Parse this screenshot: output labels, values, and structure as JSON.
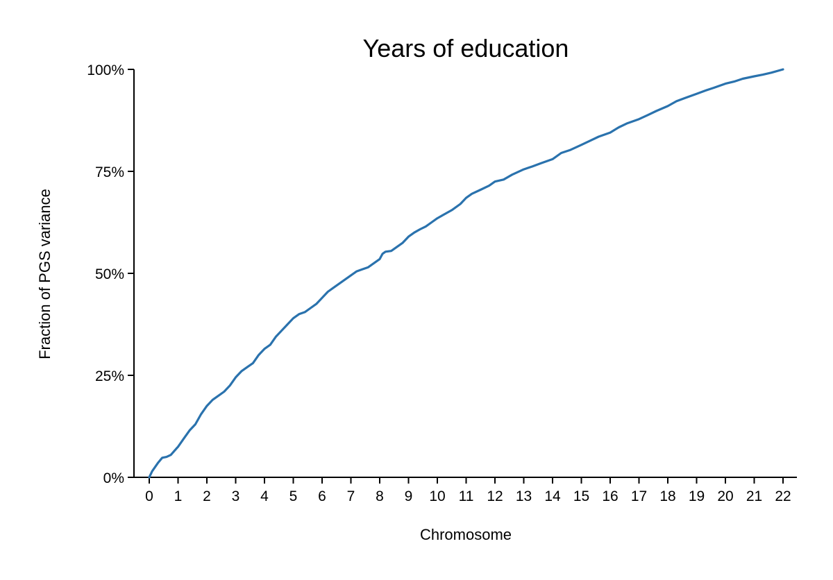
{
  "chart_data": {
    "type": "line",
    "title": "Years of education",
    "xlabel": "Chromosome",
    "ylabel": "Fraction of PGS variance",
    "xlim": [
      0,
      22
    ],
    "ylim": [
      0,
      100
    ],
    "x_ticks": [
      0,
      1,
      2,
      3,
      4,
      5,
      6,
      7,
      8,
      9,
      10,
      11,
      12,
      13,
      14,
      15,
      16,
      17,
      18,
      19,
      20,
      21,
      22
    ],
    "y_ticks": [
      0,
      25,
      50,
      75,
      100
    ],
    "y_tick_labels": [
      "0%",
      "25%",
      "50%",
      "75%",
      "100%"
    ],
    "grid": false,
    "line_color": "#2a72ad",
    "series": [
      {
        "x": [
          0,
          0.1,
          0.2,
          0.3,
          0.45,
          0.6,
          0.75,
          1.0,
          1.2,
          1.4,
          1.6,
          1.8,
          2.0,
          2.2,
          2.4,
          2.6,
          2.8,
          3.0,
          3.2,
          3.4,
          3.6,
          3.8,
          4.0,
          4.2,
          4.4,
          4.6,
          4.8,
          5.0,
          5.2,
          5.4,
          5.6,
          5.8,
          6.0,
          6.2,
          6.4,
          6.6,
          6.8,
          7.0,
          7.2,
          7.4,
          7.6,
          7.8,
          8.0,
          8.1,
          8.2,
          8.4,
          8.6,
          8.8,
          9.0,
          9.2,
          9.4,
          9.6,
          9.8,
          10.0,
          10.2,
          10.5,
          10.8,
          11.0,
          11.2,
          11.5,
          11.8,
          12.0,
          12.3,
          12.6,
          13.0,
          13.3,
          13.6,
          14.0,
          14.3,
          14.6,
          15.0,
          15.3,
          15.6,
          16.0,
          16.3,
          16.6,
          17.0,
          17.3,
          17.6,
          18.0,
          18.3,
          18.6,
          19.0,
          19.3,
          19.6,
          20.0,
          20.3,
          20.6,
          21.0,
          21.3,
          21.6,
          22.0
        ],
        "y": [
          0,
          1.5,
          2.5,
          3.5,
          4.8,
          5.0,
          5.5,
          7.5,
          9.5,
          11.5,
          13.0,
          15.5,
          17.5,
          19.0,
          20.0,
          21.0,
          22.5,
          24.5,
          26.0,
          27.0,
          28.0,
          30.0,
          31.5,
          32.5,
          34.5,
          36.0,
          37.5,
          39.0,
          40.0,
          40.5,
          41.5,
          42.5,
          44.0,
          45.5,
          46.5,
          47.5,
          48.5,
          49.5,
          50.5,
          51.0,
          51.5,
          52.5,
          53.5,
          54.8,
          55.3,
          55.5,
          56.5,
          57.5,
          59.0,
          60.0,
          60.8,
          61.5,
          62.5,
          63.5,
          64.3,
          65.5,
          67.0,
          68.5,
          69.5,
          70.5,
          71.5,
          72.5,
          73.0,
          74.2,
          75.5,
          76.2,
          77.0,
          78.0,
          79.5,
          80.2,
          81.5,
          82.5,
          83.5,
          84.5,
          85.8,
          86.8,
          87.8,
          88.8,
          89.8,
          91.0,
          92.2,
          93.0,
          94.0,
          94.8,
          95.5,
          96.5,
          97.0,
          97.7,
          98.3,
          98.7,
          99.2,
          100
        ]
      }
    ]
  }
}
